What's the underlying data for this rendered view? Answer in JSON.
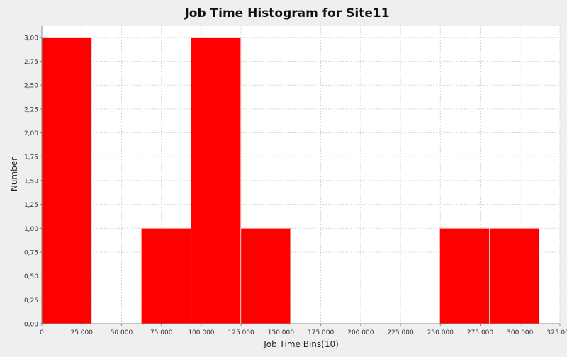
{
  "chart_data": {
    "type": "bar",
    "title": "Job Time Histogram for Site11",
    "xlabel": "Job Time Bins(10)",
    "ylabel": "Number",
    "xlim": [
      0,
      325000
    ],
    "ylim": [
      0,
      3.125
    ],
    "x_ticks": [
      "0",
      "25 000",
      "50 000",
      "75 000",
      "100 000",
      "125 000",
      "150 000",
      "175 000",
      "200 000",
      "225 000",
      "250 000",
      "275 000",
      "300 000",
      "325 000"
    ],
    "x_tick_values": [
      0,
      25000,
      50000,
      75000,
      100000,
      125000,
      150000,
      175000,
      200000,
      225000,
      250000,
      275000,
      300000,
      325000
    ],
    "y_ticks": [
      "0,00",
      "0,25",
      "0,50",
      "0,75",
      "1,00",
      "1,25",
      "1,50",
      "1,75",
      "2,00",
      "2,25",
      "2,50",
      "2,75",
      "3,00"
    ],
    "y_tick_values": [
      0,
      0.25,
      0.5,
      0.75,
      1.0,
      1.25,
      1.5,
      1.75,
      2.0,
      2.25,
      2.5,
      2.75,
      3.0
    ],
    "bins": [
      {
        "start": 0,
        "end": 31200,
        "value": 3
      },
      {
        "start": 31200,
        "end": 62400,
        "value": 0
      },
      {
        "start": 62400,
        "end": 93600,
        "value": 1
      },
      {
        "start": 93600,
        "end": 124800,
        "value": 3
      },
      {
        "start": 124800,
        "end": 156000,
        "value": 1
      },
      {
        "start": 156000,
        "end": 187200,
        "value": 0
      },
      {
        "start": 187200,
        "end": 218400,
        "value": 0
      },
      {
        "start": 218400,
        "end": 249600,
        "value": 0
      },
      {
        "start": 249600,
        "end": 280800,
        "value": 1
      },
      {
        "start": 280800,
        "end": 312000,
        "value": 1
      }
    ],
    "grid": true,
    "colors": {
      "bar": "#ff0000",
      "bar_edge": "#f4c0c0",
      "plot_bg": "#ffffff",
      "grid": "#d4d4d4",
      "page_bg": "#efefef",
      "text": "#222222"
    }
  }
}
